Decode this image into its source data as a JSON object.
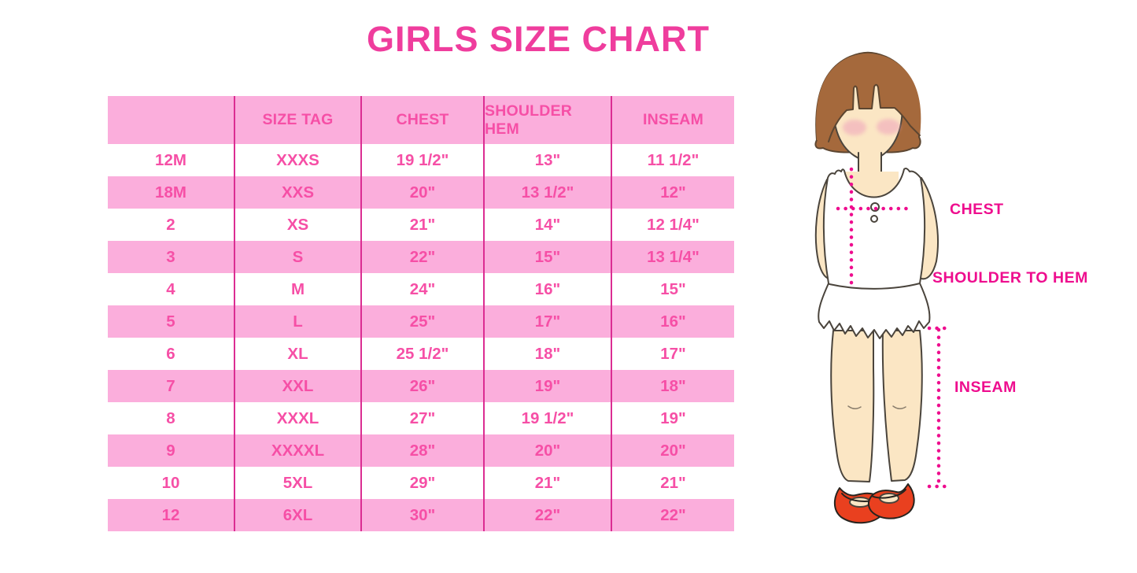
{
  "title": "GIRLS SIZE CHART",
  "table": {
    "headers": [
      "",
      "SIZE TAG",
      "CHEST",
      "SHOULDER HEM",
      "INSEAM"
    ],
    "rows": [
      [
        "12M",
        "XXXS",
        "19 1/2\"",
        "13\"",
        "11 1/2\""
      ],
      [
        "18M",
        "XXS",
        "20\"",
        "13 1/2\"",
        "12\""
      ],
      [
        "2",
        "XS",
        "21\"",
        "14\"",
        "12 1/4\""
      ],
      [
        "3",
        "S",
        "22\"",
        "15\"",
        "13 1/4\""
      ],
      [
        "4",
        "M",
        "24\"",
        "16\"",
        "15\""
      ],
      [
        "5",
        "L",
        "25\"",
        "17\"",
        "16\""
      ],
      [
        "6",
        "XL",
        "25 1/2\"",
        "18\"",
        "17\""
      ],
      [
        "7",
        "XXL",
        "26\"",
        "19\"",
        "18\""
      ],
      [
        "8",
        "XXXL",
        "27\"",
        "19 1/2\"",
        "19\""
      ],
      [
        "9",
        "XXXXL",
        "28\"",
        "20\"",
        "20\""
      ],
      [
        "10",
        "5XL",
        "29\"",
        "21\"",
        "21\""
      ],
      [
        "12",
        "6XL",
        "30\"",
        "22\"",
        "22\""
      ]
    ]
  },
  "figure": {
    "labels": {
      "chest": "CHEST",
      "shoulder_to_hem": "SHOULDER TO HEM",
      "inseam": "INSEAM"
    }
  },
  "colors": {
    "title-pink": "#EF3D9D",
    "cell-text": "#F64FA6",
    "row-pink": "#FBAEDC",
    "divider": "#DB2D92",
    "label-magenta": "#EE0D8E",
    "hair-brown": "#A5693C",
    "hair-outline": "#5C4631",
    "skin": "#FBE6C4",
    "blush": "#F0A8BC",
    "shoe-red": "#E9401F",
    "outline": "#4A443C"
  }
}
